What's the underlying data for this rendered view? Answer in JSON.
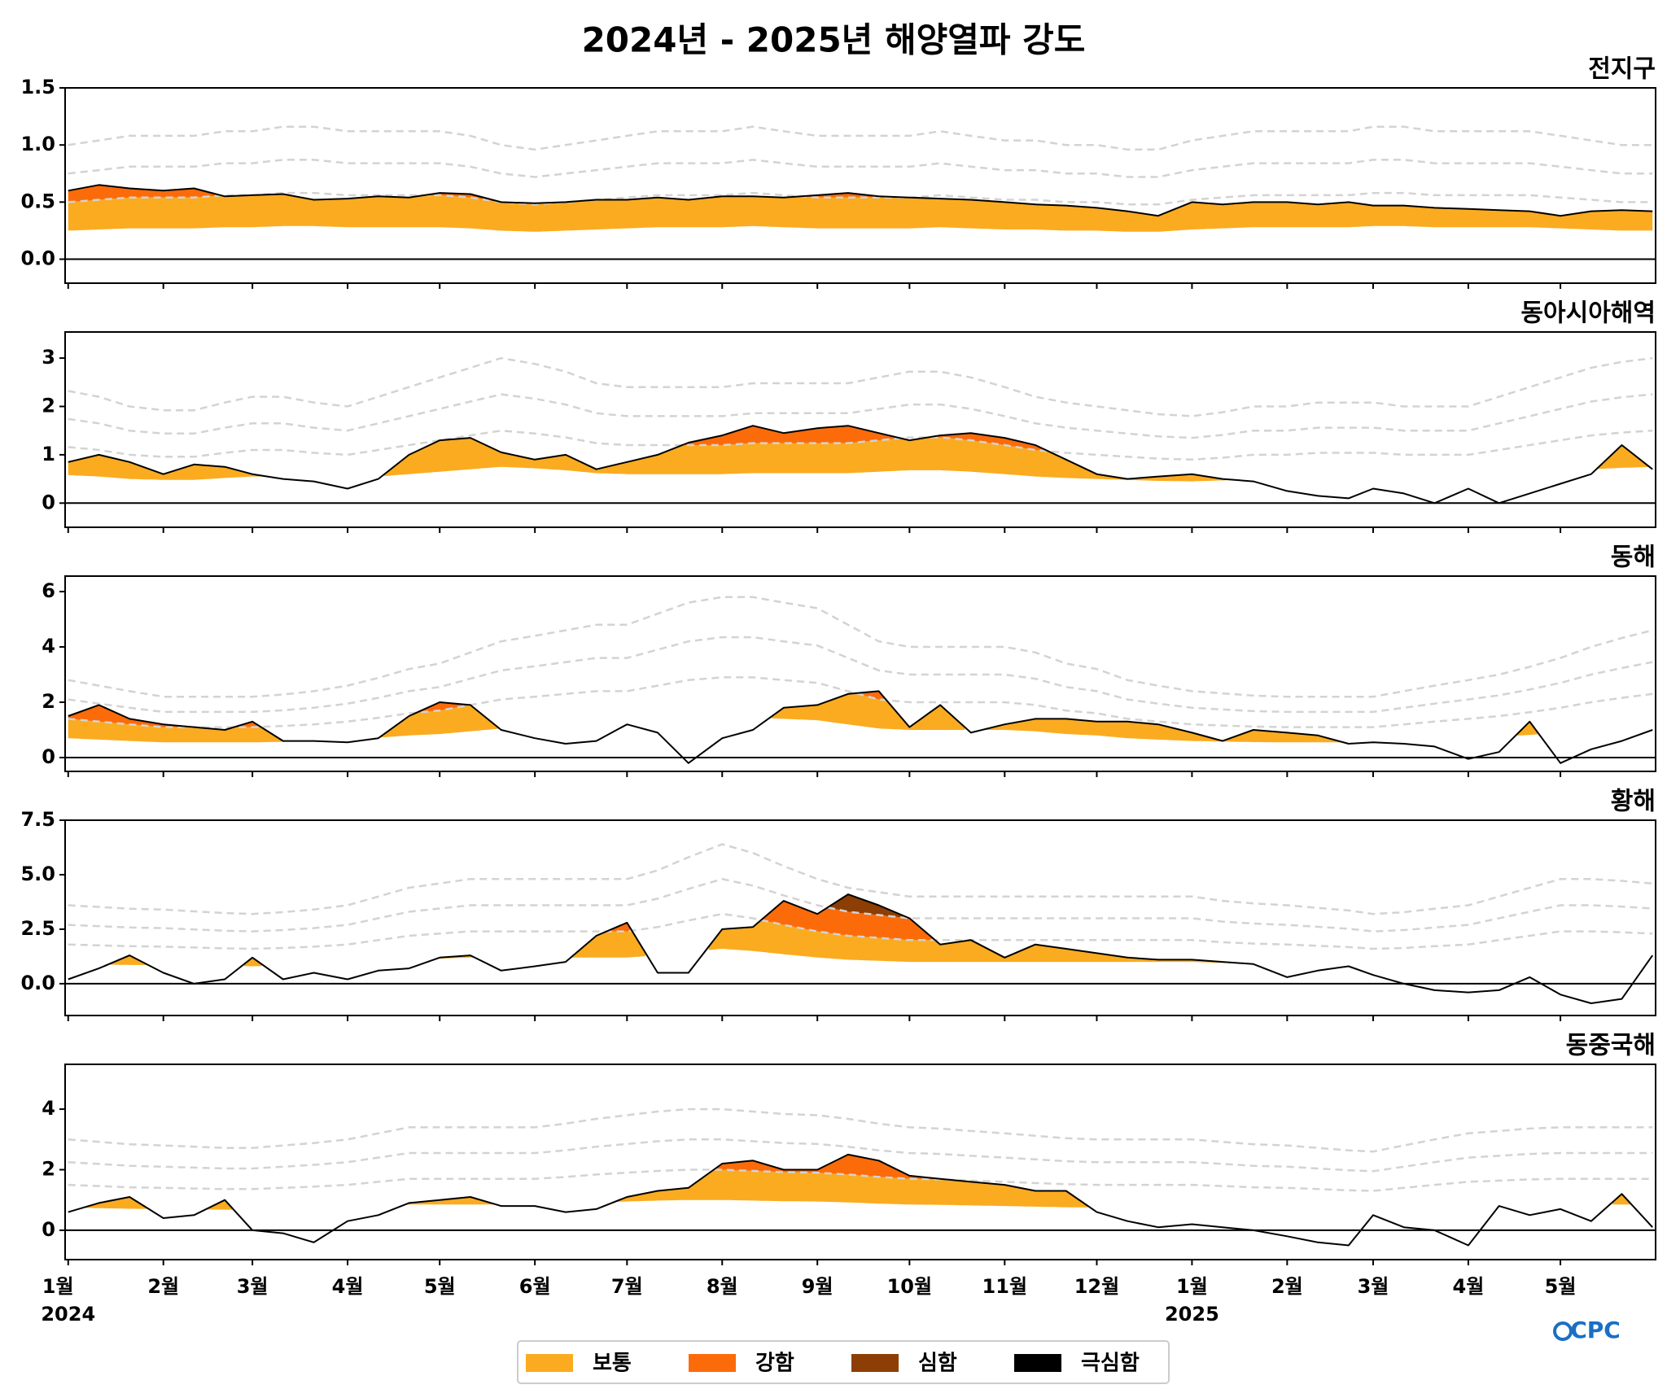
{
  "chart_data": {
    "type": "area",
    "title": "2024년 - 2025년 해양열파 강도",
    "logo": "CPC",
    "xlim": [
      "2023-12-31",
      "2025-06-01"
    ],
    "x": [
      "2024-01-01",
      "2024-01-11",
      "2024-01-21",
      "2024-02-01",
      "2024-02-11",
      "2024-02-21",
      "2024-03-01",
      "2024-03-11",
      "2024-03-21",
      "2024-04-01",
      "2024-04-11",
      "2024-04-21",
      "2024-05-01",
      "2024-05-11",
      "2024-05-21",
      "2024-06-01",
      "2024-06-11",
      "2024-06-21",
      "2024-07-01",
      "2024-07-11",
      "2024-07-21",
      "2024-08-01",
      "2024-08-11",
      "2024-08-21",
      "2024-09-01",
      "2024-09-11",
      "2024-09-21",
      "2024-10-01",
      "2024-10-11",
      "2024-10-21",
      "2024-11-01",
      "2024-11-11",
      "2024-11-21",
      "2024-12-01",
      "2024-12-11",
      "2024-12-21",
      "2025-01-01",
      "2025-01-11",
      "2025-01-21",
      "2025-02-01",
      "2025-02-11",
      "2025-02-21",
      "2025-03-01",
      "2025-03-11",
      "2025-03-21",
      "2025-04-01",
      "2025-04-11",
      "2025-04-21",
      "2025-05-01",
      "2025-05-11",
      "2025-05-21",
      "2025-05-31"
    ],
    "xticks": [
      {
        "value": "2024-01-01",
        "label": "1월"
      },
      {
        "value": "2024-02-01",
        "label": "2월"
      },
      {
        "value": "2024-03-01",
        "label": "3월"
      },
      {
        "value": "2024-04-01",
        "label": "4월"
      },
      {
        "value": "2024-05-01",
        "label": "5월"
      },
      {
        "value": "2024-06-01",
        "label": "6월"
      },
      {
        "value": "2024-07-01",
        "label": "7월"
      },
      {
        "value": "2024-08-01",
        "label": "8월"
      },
      {
        "value": "2024-09-01",
        "label": "9월"
      },
      {
        "value": "2024-10-01",
        "label": "10월"
      },
      {
        "value": "2024-11-01",
        "label": "11월"
      },
      {
        "value": "2024-12-01",
        "label": "12월"
      },
      {
        "value": "2025-01-01",
        "label": "1월"
      },
      {
        "value": "2025-02-01",
        "label": "2월"
      },
      {
        "value": "2025-03-01",
        "label": "3월"
      },
      {
        "value": "2025-04-01",
        "label": "4월"
      },
      {
        "value": "2025-05-01",
        "label": "5월"
      }
    ],
    "year_labels": [
      {
        "value": "2024-01-01",
        "label": "2024"
      },
      {
        "value": "2025-01-01",
        "label": "2025"
      }
    ],
    "legend": [
      {
        "name": "보통",
        "color": "#fbab20",
        "multiple": 1
      },
      {
        "name": "강함",
        "color": "#fc6b0a",
        "multiple": 2
      },
      {
        "name": "심함",
        "color": "#8c3e05",
        "multiple": 3
      },
      {
        "name": "극심함",
        "color": "#000000",
        "multiple": 4
      }
    ],
    "panels": [
      {
        "title": "전지구",
        "ylim": [
          -0.21,
          1.5
        ],
        "yticks": [
          {
            "value": 0,
            "label": "0.0"
          },
          {
            "value": 0.5,
            "label": "0.5"
          },
          {
            "value": 1,
            "label": "1.0"
          },
          {
            "value": 1.5,
            "label": "1.5"
          }
        ],
        "values": [
          0.6,
          0.65,
          0.62,
          0.6,
          0.62,
          0.55,
          0.56,
          0.57,
          0.52,
          0.53,
          0.55,
          0.54,
          0.58,
          0.57,
          0.5,
          0.49,
          0.5,
          0.52,
          0.52,
          0.54,
          0.52,
          0.55,
          0.55,
          0.54,
          0.56,
          0.58,
          0.55,
          0.54,
          0.53,
          0.52,
          0.5,
          0.48,
          0.47,
          0.45,
          0.42,
          0.38,
          0.5,
          0.48,
          0.5,
          0.5,
          0.48,
          0.5,
          0.47,
          0.47,
          0.45,
          0.44,
          0.43,
          0.42,
          0.38,
          0.42,
          0.43,
          0.42
        ],
        "threshold": [
          0.25,
          0.26,
          0.27,
          0.27,
          0.27,
          0.28,
          0.28,
          0.29,
          0.29,
          0.28,
          0.28,
          0.28,
          0.28,
          0.27,
          0.25,
          0.24,
          0.25,
          0.26,
          0.27,
          0.28,
          0.28,
          0.28,
          0.29,
          0.28,
          0.27,
          0.27,
          0.27,
          0.27,
          0.28,
          0.27,
          0.26,
          0.26,
          0.25,
          0.25,
          0.24,
          0.24,
          0.26,
          0.27,
          0.28,
          0.28,
          0.28,
          0.28,
          0.29,
          0.29,
          0.28,
          0.28,
          0.28,
          0.28,
          0.27,
          0.26,
          0.25,
          0.25
        ]
      },
      {
        "title": "동아시아해역",
        "ylim": [
          -0.5,
          3.54
        ],
        "yticks": [
          0,
          1,
          2,
          3
        ],
        "values": [
          0.85,
          1.0,
          0.85,
          0.6,
          0.8,
          0.75,
          0.6,
          0.5,
          0.45,
          0.3,
          0.5,
          1.0,
          1.3,
          1.35,
          1.05,
          0.9,
          1.0,
          0.7,
          0.85,
          1.0,
          1.25,
          1.4,
          1.6,
          1.45,
          1.55,
          1.6,
          1.45,
          1.3,
          1.4,
          1.45,
          1.35,
          1.2,
          0.9,
          0.6,
          0.5,
          0.55,
          0.6,
          0.5,
          0.45,
          0.25,
          0.15,
          0.1,
          0.3,
          0.2,
          0.0,
          0.3,
          0.0,
          0.2,
          0.4,
          0.6,
          1.2,
          0.7
        ],
        "threshold": [
          0.58,
          0.55,
          0.5,
          0.48,
          0.48,
          0.52,
          0.55,
          0.55,
          0.52,
          0.5,
          0.55,
          0.6,
          0.65,
          0.7,
          0.75,
          0.72,
          0.68,
          0.62,
          0.6,
          0.6,
          0.6,
          0.6,
          0.62,
          0.62,
          0.62,
          0.62,
          0.65,
          0.68,
          0.68,
          0.65,
          0.6,
          0.55,
          0.52,
          0.5,
          0.48,
          0.46,
          0.45,
          0.47,
          0.5,
          0.5,
          0.52,
          0.52,
          0.52,
          0.5,
          0.5,
          0.5,
          0.55,
          0.6,
          0.65,
          0.7,
          0.73,
          0.75
        ]
      },
      {
        "title": "동해",
        "ylim": [
          -0.5,
          6.56
        ],
        "yticks": [
          0,
          2,
          4,
          6
        ],
        "values": [
          1.5,
          1.9,
          1.4,
          1.2,
          1.1,
          1.0,
          1.3,
          0.6,
          0.6,
          0.55,
          0.7,
          1.5,
          2.0,
          1.9,
          1.0,
          0.7,
          0.5,
          0.6,
          1.2,
          0.9,
          -0.2,
          0.7,
          1.0,
          1.8,
          1.9,
          2.3,
          2.4,
          1.1,
          1.9,
          0.9,
          1.2,
          1.4,
          1.4,
          1.3,
          1.3,
          1.2,
          0.9,
          0.6,
          1.0,
          0.9,
          0.8,
          0.5,
          0.55,
          0.5,
          0.4,
          -0.05,
          0.2,
          1.3,
          -0.2,
          0.3,
          0.6,
          1.0
        ],
        "threshold": [
          0.7,
          0.65,
          0.6,
          0.55,
          0.55,
          0.55,
          0.55,
          0.57,
          0.6,
          0.65,
          0.72,
          0.8,
          0.85,
          0.95,
          1.05,
          1.1,
          1.15,
          1.2,
          1.2,
          1.3,
          1.4,
          1.45,
          1.45,
          1.4,
          1.35,
          1.2,
          1.05,
          1.0,
          1.0,
          1.0,
          1.0,
          0.95,
          0.85,
          0.8,
          0.7,
          0.65,
          0.6,
          0.58,
          0.56,
          0.55,
          0.55,
          0.55,
          0.55,
          0.6,
          0.65,
          0.7,
          0.75,
          0.82,
          0.9,
          1.0,
          1.08,
          1.15
        ]
      },
      {
        "title": "황해",
        "ylim": [
          -1.46,
          7.5
        ],
        "yticks": [
          {
            "value": 0,
            "label": "0.0"
          },
          {
            "value": 2.5,
            "label": "2.5"
          },
          {
            "value": 5,
            "label": "5.0"
          },
          {
            "value": 7.5,
            "label": "7.5"
          }
        ],
        "values": [
          0.2,
          0.7,
          1.3,
          0.5,
          0.0,
          0.2,
          1.2,
          0.2,
          0.5,
          0.2,
          0.6,
          0.7,
          1.2,
          1.3,
          0.6,
          0.8,
          1.0,
          2.2,
          2.8,
          0.5,
          0.5,
          2.5,
          2.6,
          3.8,
          3.2,
          4.1,
          3.6,
          3.0,
          1.8,
          2.0,
          1.2,
          1.8,
          1.6,
          1.4,
          1.2,
          1.1,
          1.1,
          1.0,
          0.9,
          0.3,
          0.6,
          0.8,
          0.4,
          0.0,
          -0.3,
          -0.4,
          -0.3,
          0.3,
          -0.5,
          -0.9,
          -0.7,
          1.3
        ],
        "threshold": [
          0.9,
          0.88,
          0.86,
          0.85,
          0.83,
          0.81,
          0.8,
          0.82,
          0.85,
          0.9,
          1.0,
          1.1,
          1.15,
          1.2,
          1.2,
          1.2,
          1.2,
          1.2,
          1.2,
          1.3,
          1.45,
          1.6,
          1.5,
          1.35,
          1.2,
          1.1,
          1.05,
          1.0,
          1.0,
          1.0,
          1.0,
          1.0,
          1.0,
          1.0,
          1.0,
          1.0,
          1.0,
          0.95,
          0.92,
          0.9,
          0.87,
          0.84,
          0.8,
          0.82,
          0.86,
          0.9,
          1.0,
          1.1,
          1.2,
          1.2,
          1.18,
          1.15
        ]
      },
      {
        "title": "동중국해",
        "ylim": [
          -0.97,
          5.48
        ],
        "yticks": [
          0,
          2,
          4
        ],
        "values": [
          0.6,
          0.9,
          1.1,
          0.4,
          0.5,
          1.0,
          0.0,
          -0.1,
          -0.4,
          0.3,
          0.5,
          0.9,
          1.0,
          1.1,
          0.8,
          0.8,
          0.6,
          0.7,
          1.1,
          1.3,
          1.4,
          2.2,
          2.3,
          2.0,
          2.0,
          2.5,
          2.3,
          1.8,
          1.7,
          1.6,
          1.5,
          1.3,
          1.3,
          0.6,
          0.3,
          0.1,
          0.2,
          0.1,
          0.0,
          -0.2,
          -0.4,
          -0.5,
          0.5,
          0.1,
          0.0,
          -0.5,
          0.8,
          0.5,
          0.7,
          0.3,
          1.2,
          0.1
        ],
        "threshold": [
          0.75,
          0.73,
          0.71,
          0.7,
          0.69,
          0.68,
          0.68,
          0.7,
          0.72,
          0.75,
          0.8,
          0.85,
          0.85,
          0.85,
          0.85,
          0.85,
          0.88,
          0.92,
          0.95,
          0.98,
          1.0,
          1.0,
          0.98,
          0.96,
          0.95,
          0.92,
          0.88,
          0.85,
          0.84,
          0.82,
          0.8,
          0.78,
          0.76,
          0.75,
          0.75,
          0.75,
          0.75,
          0.73,
          0.71,
          0.7,
          0.68,
          0.66,
          0.65,
          0.7,
          0.75,
          0.8,
          0.82,
          0.84,
          0.85,
          0.85,
          0.85,
          0.85
        ]
      }
    ]
  }
}
